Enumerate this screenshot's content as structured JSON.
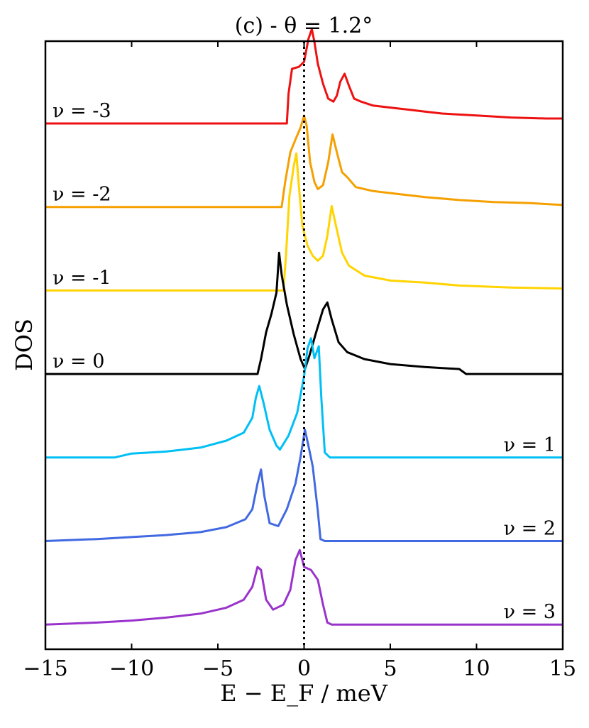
{
  "chart_data": {
    "type": "line",
    "title": "(c) - θ = 1.2°",
    "xlabel": "E − E_F / meV",
    "ylabel": "DOS",
    "xlim": [
      -15,
      15
    ],
    "xticks": [
      -15,
      -10,
      -5,
      0,
      5,
      10,
      15
    ],
    "xtick_labels": [
      "−15",
      "−10",
      "−5",
      "0",
      "5",
      "10",
      "15"
    ],
    "reference_line": {
      "x": 0,
      "style": "dotted",
      "color": "#000000"
    },
    "grid": false,
    "series": [
      {
        "name": "ν = -3",
        "label": "ν = -3",
        "color": "#ee1111",
        "label_side": "left",
        "baseline_rank": 6,
        "points": [
          [
            -15,
            0
          ],
          [
            -1.0,
            0
          ],
          [
            -0.9,
            0.3
          ],
          [
            -0.7,
            0.55
          ],
          [
            -0.3,
            0.57
          ],
          [
            0.0,
            0.62
          ],
          [
            0.25,
            0.85
          ],
          [
            0.45,
            0.95
          ],
          [
            0.6,
            0.82
          ],
          [
            0.8,
            0.6
          ],
          [
            1.1,
            0.4
          ],
          [
            1.4,
            0.25
          ],
          [
            1.7,
            0.22
          ],
          [
            1.9,
            0.28
          ],
          [
            2.1,
            0.42
          ],
          [
            2.35,
            0.5
          ],
          [
            2.6,
            0.38
          ],
          [
            2.9,
            0.25
          ],
          [
            3.3,
            0.22
          ],
          [
            4,
            0.18
          ],
          [
            5,
            0.16
          ],
          [
            6,
            0.14
          ],
          [
            7,
            0.12
          ],
          [
            8,
            0.1
          ],
          [
            10,
            0.08
          ],
          [
            12,
            0.06
          ],
          [
            14,
            0.05
          ],
          [
            15,
            0.05
          ]
        ]
      },
      {
        "name": "ν = -2",
        "label": "ν = -2",
        "color": "#f5a000",
        "label_side": "left",
        "baseline_rank": 5,
        "points": [
          [
            -15,
            0
          ],
          [
            -1.3,
            0
          ],
          [
            -1.1,
            0.25
          ],
          [
            -0.8,
            0.55
          ],
          [
            -0.5,
            0.68
          ],
          [
            -0.2,
            0.8
          ],
          [
            0.0,
            0.92
          ],
          [
            0.15,
            0.82
          ],
          [
            0.35,
            0.45
          ],
          [
            0.6,
            0.25
          ],
          [
            0.8,
            0.18
          ],
          [
            1.1,
            0.22
          ],
          [
            1.4,
            0.45
          ],
          [
            1.65,
            0.73
          ],
          [
            1.9,
            0.55
          ],
          [
            2.2,
            0.35
          ],
          [
            2.5,
            0.3
          ],
          [
            3,
            0.2
          ],
          [
            4,
            0.16
          ],
          [
            5,
            0.14
          ],
          [
            7,
            0.1
          ],
          [
            9,
            0.07
          ],
          [
            11,
            0.05
          ],
          [
            13,
            0.04
          ],
          [
            15,
            0.02
          ]
        ]
      },
      {
        "name": "ν = -1",
        "label": "ν = -1",
        "color": "#ffd400",
        "label_side": "left",
        "baseline_rank": 4,
        "points": [
          [
            -15,
            0
          ],
          [
            -1.2,
            0
          ],
          [
            -1.05,
            0.35
          ],
          [
            -0.85,
            0.95
          ],
          [
            -0.6,
            1.25
          ],
          [
            -0.45,
            1.38
          ],
          [
            -0.3,
            1.05
          ],
          [
            -0.1,
            0.65
          ],
          [
            0.2,
            0.45
          ],
          [
            0.5,
            0.35
          ],
          [
            0.8,
            0.3
          ],
          [
            1.1,
            0.35
          ],
          [
            1.35,
            0.55
          ],
          [
            1.6,
            0.85
          ],
          [
            1.85,
            0.65
          ],
          [
            2.2,
            0.38
          ],
          [
            2.6,
            0.25
          ],
          [
            3.5,
            0.15
          ],
          [
            5,
            0.1
          ],
          [
            7,
            0.08
          ],
          [
            9,
            0.05
          ],
          [
            12,
            0.03
          ],
          [
            15,
            0.02
          ]
        ]
      },
      {
        "name": "ν = 0",
        "label": "ν = 0",
        "color": "#000000",
        "label_side": "left",
        "baseline_rank": 3,
        "points": [
          [
            -15,
            0
          ],
          [
            -2.7,
            0
          ],
          [
            -2.5,
            0.15
          ],
          [
            -2.2,
            0.42
          ],
          [
            -1.9,
            0.6
          ],
          [
            -1.6,
            0.82
          ],
          [
            -1.45,
            1.22
          ],
          [
            -1.3,
            1.0
          ],
          [
            -1.0,
            0.7
          ],
          [
            -0.6,
            0.4
          ],
          [
            -0.2,
            0.15
          ],
          [
            0.05,
            0.05
          ],
          [
            0.3,
            0.18
          ],
          [
            0.7,
            0.42
          ],
          [
            1.1,
            0.65
          ],
          [
            1.35,
            0.72
          ],
          [
            1.6,
            0.55
          ],
          [
            2.0,
            0.32
          ],
          [
            2.5,
            0.22
          ],
          [
            3.5,
            0.15
          ],
          [
            5,
            0.1
          ],
          [
            7,
            0.07
          ],
          [
            9,
            0.05
          ],
          [
            9.4,
            0
          ],
          [
            15,
            0
          ]
        ]
      },
      {
        "name": "ν = 1",
        "label": "ν = 1",
        "color": "#00bff5",
        "label_side": "right",
        "baseline_rank": 2,
        "points": [
          [
            -15,
            0
          ],
          [
            -11,
            0
          ],
          [
            -10,
            0.04
          ],
          [
            -8,
            0.06
          ],
          [
            -6,
            0.1
          ],
          [
            -4.5,
            0.17
          ],
          [
            -3.5,
            0.25
          ],
          [
            -3.0,
            0.4
          ],
          [
            -2.8,
            0.6
          ],
          [
            -2.6,
            0.72
          ],
          [
            -2.35,
            0.55
          ],
          [
            -2.0,
            0.28
          ],
          [
            -1.6,
            0.12
          ],
          [
            -1.4,
            0.08
          ],
          [
            -0.9,
            0.22
          ],
          [
            -0.4,
            0.45
          ],
          [
            0.0,
            0.82
          ],
          [
            0.2,
            1.1
          ],
          [
            0.4,
            1.2
          ],
          [
            0.6,
            1.0
          ],
          [
            0.85,
            1.12
          ],
          [
            1.0,
            0.6
          ],
          [
            1.2,
            0.05
          ],
          [
            1.5,
            0
          ],
          [
            15,
            0
          ]
        ]
      },
      {
        "name": "ν = 2",
        "label": "ν = 2",
        "color": "#4169e1",
        "label_side": "right",
        "baseline_rank": 1,
        "points": [
          [
            -15,
            0
          ],
          [
            -12,
            0.02
          ],
          [
            -10,
            0.04
          ],
          [
            -8,
            0.06
          ],
          [
            -6,
            0.09
          ],
          [
            -4.5,
            0.14
          ],
          [
            -3.4,
            0.22
          ],
          [
            -3.0,
            0.32
          ],
          [
            -2.7,
            0.58
          ],
          [
            -2.5,
            0.72
          ],
          [
            -2.3,
            0.45
          ],
          [
            -2.0,
            0.18
          ],
          [
            -1.5,
            0.15
          ],
          [
            -1.0,
            0.32
          ],
          [
            -0.5,
            0.58
          ],
          [
            -0.2,
            0.85
          ],
          [
            0.05,
            1.12
          ],
          [
            0.3,
            0.92
          ],
          [
            0.5,
            0.75
          ],
          [
            0.8,
            0.3
          ],
          [
            0.95,
            0.02
          ],
          [
            1.2,
            0
          ],
          [
            15,
            0
          ]
        ]
      },
      {
        "name": "ν = 3",
        "label": "ν = 3",
        "color": "#9933cc",
        "label_side": "right",
        "baseline_rank": 0,
        "points": [
          [
            -15,
            0
          ],
          [
            -12,
            0.02
          ],
          [
            -10,
            0.04
          ],
          [
            -8,
            0.07
          ],
          [
            -6,
            0.11
          ],
          [
            -4.5,
            0.17
          ],
          [
            -3.5,
            0.25
          ],
          [
            -3.0,
            0.38
          ],
          [
            -2.7,
            0.58
          ],
          [
            -2.5,
            0.55
          ],
          [
            -2.2,
            0.25
          ],
          [
            -1.8,
            0.15
          ],
          [
            -1.2,
            0.2
          ],
          [
            -0.8,
            0.35
          ],
          [
            -0.5,
            0.65
          ],
          [
            -0.25,
            0.75
          ],
          [
            0.0,
            0.58
          ],
          [
            0.4,
            0.55
          ],
          [
            0.8,
            0.45
          ],
          [
            1.1,
            0.2
          ],
          [
            1.35,
            0.02
          ],
          [
            1.6,
            0
          ],
          [
            15,
            0
          ]
        ]
      }
    ]
  }
}
